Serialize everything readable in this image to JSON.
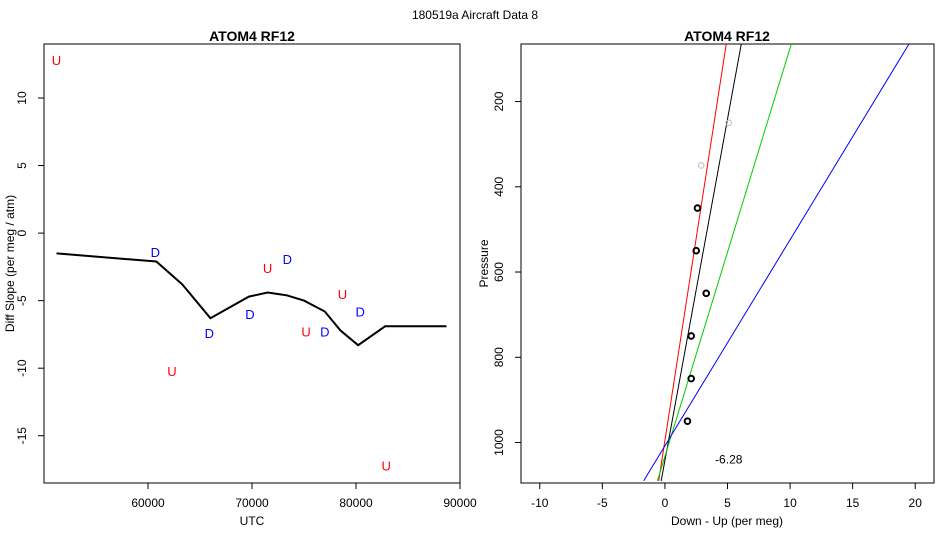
{
  "figure_title": "180519a   Aircraft Data 8",
  "colors": {
    "up": "#ff0000",
    "down": "#0000ff",
    "line": "#000000",
    "grey": "#bebebe",
    "red": "#ff0000",
    "green": "#00cc00",
    "blue": "#0000ff",
    "black": "#000000"
  },
  "chart_data": [
    {
      "type": "line",
      "title": "ATOM4 RF12",
      "xlabel": "UTC",
      "ylabel": "Diff Slope (per meg / atm)",
      "xlim": [
        50000,
        90000
      ],
      "ylim": [
        -18.5,
        14
      ],
      "xticks": [
        60000,
        70000,
        80000,
        90000
      ],
      "yticks": [
        -15,
        -10,
        -5,
        0,
        5,
        10
      ],
      "series": [
        {
          "name": "diff slope",
          "x": [
            51200,
            60800,
            63300,
            66000,
            69700,
            71500,
            73300,
            75000,
            77000,
            78500,
            80200,
            82800,
            88700
          ],
          "y": [
            -1.5,
            -2.1,
            -3.8,
            -6.3,
            -4.7,
            -4.4,
            -4.6,
            -5.0,
            -5.8,
            -7.2,
            -8.3,
            -6.9,
            -6.9
          ]
        }
      ],
      "annotations": [
        {
          "label": "U",
          "x": 51200,
          "y": 12.8,
          "kind": "up"
        },
        {
          "label": "D",
          "x": 60700,
          "y": -1.4,
          "kind": "down"
        },
        {
          "label": "U",
          "x": 62300,
          "y": -10.2,
          "kind": "up"
        },
        {
          "label": "D",
          "x": 65900,
          "y": -7.4,
          "kind": "down"
        },
        {
          "label": "D",
          "x": 69800,
          "y": -6.0,
          "kind": "down"
        },
        {
          "label": "U",
          "x": 71500,
          "y": -2.6,
          "kind": "up"
        },
        {
          "label": "D",
          "x": 73400,
          "y": -1.9,
          "kind": "down"
        },
        {
          "label": "U",
          "x": 75200,
          "y": -7.3,
          "kind": "up"
        },
        {
          "label": "D",
          "x": 77000,
          "y": -7.3,
          "kind": "down"
        },
        {
          "label": "U",
          "x": 78700,
          "y": -4.5,
          "kind": "up"
        },
        {
          "label": "D",
          "x": 80400,
          "y": -5.8,
          "kind": "down"
        },
        {
          "label": "U",
          "x": 82900,
          "y": -17.2,
          "kind": "up"
        }
      ]
    },
    {
      "type": "scatter",
      "title": "ATOM4 RF12",
      "xlabel": "Down - Up (per meg)",
      "ylabel": "Pressure",
      "xlim": [
        -11.5,
        21.5
      ],
      "ylim": [
        1095,
        65
      ],
      "xticks": [
        -10,
        -5,
        0,
        5,
        10,
        15,
        20
      ],
      "yticks": [
        200,
        400,
        600,
        800,
        1000
      ],
      "annotation": "-6.28",
      "annotation_pos": {
        "x": 5.1,
        "y": 1040
      },
      "points": [
        {
          "x": 5.1,
          "y": 250,
          "kind": "grey"
        },
        {
          "x": 2.9,
          "y": 350,
          "kind": "grey"
        },
        {
          "x": 2.6,
          "y": 450,
          "kind": "black"
        },
        {
          "x": 2.5,
          "y": 550,
          "kind": "black"
        },
        {
          "x": 3.3,
          "y": 650,
          "kind": "black"
        },
        {
          "x": 2.1,
          "y": 750,
          "kind": "black"
        },
        {
          "x": 2.1,
          "y": 850,
          "kind": "black"
        },
        {
          "x": 1.8,
          "y": 950,
          "kind": "black"
        }
      ],
      "fit_lines": [
        {
          "color": "red",
          "p1": [
            -0.5,
            1090
          ],
          "p2": [
            4.9,
            65
          ]
        },
        {
          "color": "black",
          "p1": [
            -0.3,
            1090
          ],
          "p2": [
            6.1,
            65
          ]
        },
        {
          "color": "green",
          "p1": [
            -0.6,
            1090
          ],
          "p2": [
            10.1,
            65
          ]
        },
        {
          "color": "blue",
          "p1": [
            -1.7,
            1090
          ],
          "p2": [
            19.5,
            65
          ]
        }
      ]
    }
  ]
}
